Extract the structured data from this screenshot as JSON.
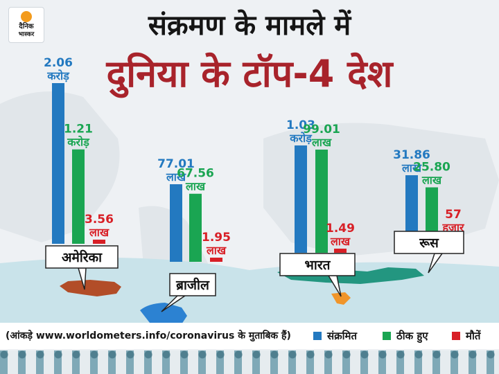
{
  "brand": {
    "line1": "दैनिक",
    "line2": "भास्कर"
  },
  "heading": {
    "line1": "संक्रमण के मामले में",
    "line2": "दुनिया के टॉप-4 देश"
  },
  "source_note": "(आंकड़े www.worldometers.info/coronavirus के मुताबिक हैं)",
  "colors": {
    "infected": "#2379c0",
    "recovered": "#1aa552",
    "deaths": "#d81f26",
    "usa_map": "#b24d28",
    "brazil_map": "#2c82d2",
    "india_map": "#f0952a",
    "russia_map": "#239680",
    "label_red": "#d81f26"
  },
  "chart_data": {
    "type": "bar",
    "title": "दुनिया के टॉप-4 देश",
    "subtitle": "संक्रमण के मामले में",
    "legend_position": "bottom-right",
    "grid": false,
    "categories": [
      "अमेरिका",
      "ब्राजील",
      "भारत",
      "रूस"
    ],
    "series": [
      {
        "name": "संक्रमित",
        "color": "#2379c0",
        "values": [
          20600000,
          7701000,
          10300000,
          3186000
        ],
        "labels": [
          [
            "2.06",
            "करोड़"
          ],
          [
            "77.01",
            "लाख"
          ],
          [
            "1.03",
            "करोड़"
          ],
          [
            "31.86",
            "लाख"
          ]
        ]
      },
      {
        "name": "ठीक हुए",
        "color": "#1aa552",
        "values": [
          12100000,
          6756000,
          9901000,
          2580000
        ],
        "labels": [
          [
            "1.21",
            "करोड़"
          ],
          [
            "67.56",
            "लाख"
          ],
          [
            "99.01",
            "लाख"
          ],
          [
            "25.80",
            "लाख"
          ]
        ]
      },
      {
        "name": "मौतें",
        "color": "#d81f26",
        "values": [
          356000,
          195000,
          149000,
          57000
        ],
        "labels": [
          [
            "3.56",
            "लाख"
          ],
          [
            "1.95",
            "लाख"
          ],
          [
            "1.49",
            "लाख"
          ],
          [
            "57",
            "हजार"
          ]
        ]
      }
    ]
  }
}
